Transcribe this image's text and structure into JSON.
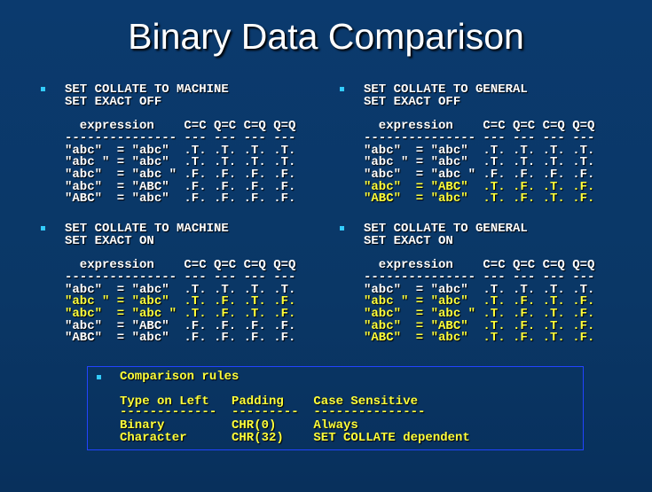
{
  "title": "Binary Data Comparison",
  "quadrants": [
    {
      "commands": [
        "SET COLLATE TO MACHINE",
        "SET EXACT OFF"
      ],
      "header": [
        "expression",
        "C=C",
        "Q=C",
        "C=Q",
        "Q=Q"
      ],
      "dashes": "--------------- --- --- --- ---",
      "rows": [
        {
          "expression": "\"abc\"  = \"abc\"",
          "values": [
            ".T.",
            ".T.",
            ".T.",
            ".T."
          ],
          "highlighted": false
        },
        {
          "expression": "\"abc \" = \"abc\"",
          "values": [
            ".T.",
            ".T.",
            ".T.",
            ".T."
          ],
          "highlighted": false
        },
        {
          "expression": "\"abc\"  = \"abc \"",
          "values": [
            ".F.",
            ".F.",
            ".F.",
            ".F."
          ],
          "highlighted": false
        },
        {
          "expression": "\"abc\"  = \"ABC\"",
          "values": [
            ".F.",
            ".F.",
            ".F.",
            ".F."
          ],
          "highlighted": false
        },
        {
          "expression": "\"ABC\"  = \"abc\"",
          "values": [
            ".F.",
            ".F.",
            ".F.",
            ".F."
          ],
          "highlighted": false
        }
      ]
    },
    {
      "commands": [
        "SET COLLATE TO GENERAL",
        "SET EXACT OFF"
      ],
      "header": [
        "expression",
        "C=C",
        "Q=C",
        "C=Q",
        "Q=Q"
      ],
      "dashes": "--------------- --- --- --- ---",
      "rows": [
        {
          "expression": "\"abc\"  = \"abc\"",
          "values": [
            ".T.",
            ".T.",
            ".T.",
            ".T."
          ],
          "highlighted": false
        },
        {
          "expression": "\"abc \" = \"abc\"",
          "values": [
            ".T.",
            ".T.",
            ".T.",
            ".T."
          ],
          "highlighted": false
        },
        {
          "expression": "\"abc\"  = \"abc \"",
          "values": [
            ".F.",
            ".F.",
            ".F.",
            ".F."
          ],
          "highlighted": false
        },
        {
          "expression": "\"abc\"  = \"ABC\"",
          "values": [
            ".T.",
            ".F.",
            ".T.",
            ".F."
          ],
          "highlighted": true
        },
        {
          "expression": "\"ABC\"  = \"abc\"",
          "values": [
            ".T.",
            ".F.",
            ".T.",
            ".F."
          ],
          "highlighted": true
        }
      ]
    },
    {
      "commands": [
        "SET COLLATE TO MACHINE",
        "SET EXACT ON"
      ],
      "header": [
        "expression",
        "C=C",
        "Q=C",
        "C=Q",
        "Q=Q"
      ],
      "dashes": "--------------- --- --- --- ---",
      "rows": [
        {
          "expression": "\"abc\"  = \"abc\"",
          "values": [
            ".T.",
            ".T.",
            ".T.",
            ".T."
          ],
          "highlighted": false
        },
        {
          "expression": "\"abc \" = \"abc\"",
          "values": [
            ".T.",
            ".F.",
            ".T.",
            ".F."
          ],
          "highlighted": true
        },
        {
          "expression": "\"abc\"  = \"abc \"",
          "values": [
            ".T.",
            ".F.",
            ".T.",
            ".F."
          ],
          "highlighted": true
        },
        {
          "expression": "\"abc\"  = \"ABC\"",
          "values": [
            ".F.",
            ".F.",
            ".F.",
            ".F."
          ],
          "highlighted": false
        },
        {
          "expression": "\"ABC\"  = \"abc\"",
          "values": [
            ".F.",
            ".F.",
            ".F.",
            ".F."
          ],
          "highlighted": false
        }
      ]
    },
    {
      "commands": [
        "SET COLLATE TO GENERAL",
        "SET EXACT ON"
      ],
      "header": [
        "expression",
        "C=C",
        "Q=C",
        "C=Q",
        "Q=Q"
      ],
      "dashes": "--------------- --- --- --- ---",
      "rows": [
        {
          "expression": "\"abc\"  = \"abc\"",
          "values": [
            ".T.",
            ".T.",
            ".T.",
            ".T."
          ],
          "highlighted": false
        },
        {
          "expression": "\"abc \" = \"abc\"",
          "values": [
            ".T.",
            ".F.",
            ".T.",
            ".F."
          ],
          "highlighted": true
        },
        {
          "expression": "\"abc\"  = \"abc \"",
          "values": [
            ".T.",
            ".F.",
            ".T.",
            ".F."
          ],
          "highlighted": true
        },
        {
          "expression": "\"abc\"  = \"ABC\"",
          "values": [
            ".T.",
            ".F.",
            ".T.",
            ".F."
          ],
          "highlighted": true
        },
        {
          "expression": "\"ABC\"  = \"abc\"",
          "values": [
            ".T.",
            ".F.",
            ".T.",
            ".F."
          ],
          "highlighted": true
        }
      ]
    }
  ],
  "rules": {
    "heading": "Comparison rules",
    "header": [
      "Type on Left",
      "Padding",
      "Case Sensitive"
    ],
    "dashes": [
      "-------------",
      "---------",
      "---------------"
    ],
    "rows": [
      [
        "Binary",
        "CHR(0)",
        "Always"
      ],
      [
        "Character",
        "CHR(32)",
        "SET COLLATE dependent"
      ]
    ]
  }
}
